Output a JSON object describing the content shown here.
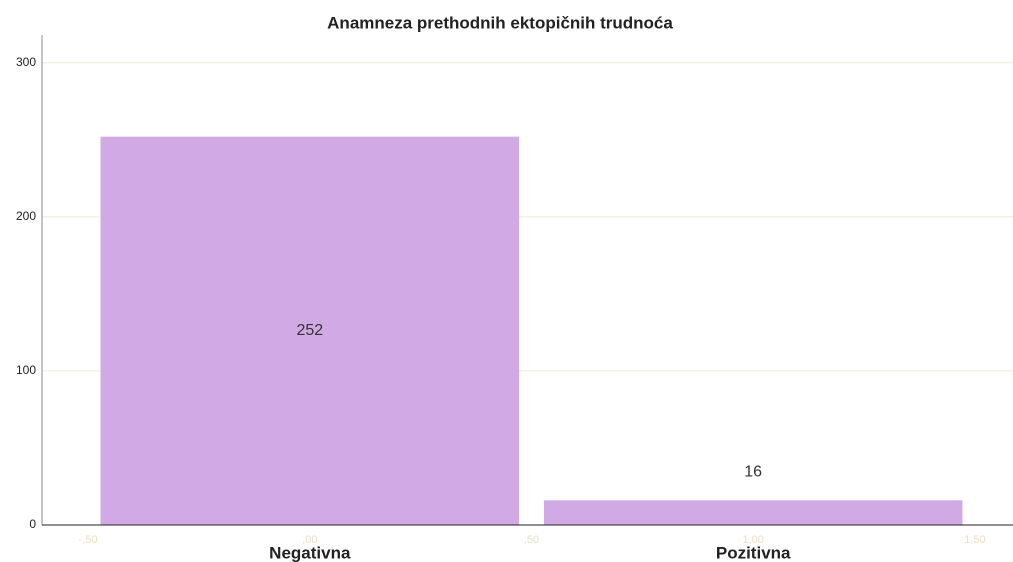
{
  "chart_data": {
    "type": "bar",
    "title": "Anamneza prethodnih ektopičnih trudnoća",
    "x": [
      0,
      1
    ],
    "categories": [
      "Negativna",
      "Pozitivna"
    ],
    "values": [
      252,
      16
    ],
    "color": "#d0a9e5",
    "xlim": [
      -0.604,
      1.586
    ],
    "xticks": [
      {
        "value": -0.5,
        "label": "-,50"
      },
      {
        "value": 0,
        "label": ",00"
      },
      {
        "value": 0.5,
        "label": ",50"
      },
      {
        "value": 1,
        "label": "1,00"
      },
      {
        "value": 1.5,
        "label": "1,50"
      }
    ],
    "ylim": [
      0,
      318
    ],
    "yticks": [
      0,
      100,
      200,
      300
    ],
    "grid": true
  }
}
